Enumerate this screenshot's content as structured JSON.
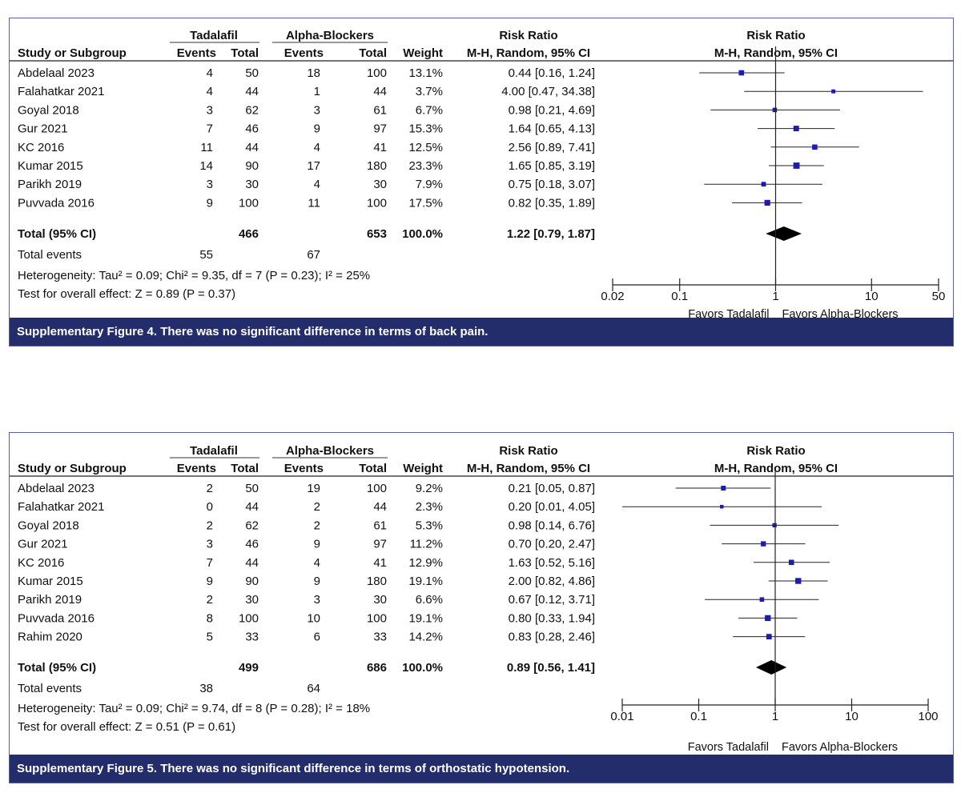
{
  "colors": {
    "accent": "#242d6b",
    "marker": "#1c1cb0",
    "border": "#5a5f9e"
  },
  "labels": {
    "group1": "Tadalafil",
    "group2": "Alpha-Blockers",
    "study_col": "Study or Subgroup",
    "events": "Events",
    "total": "Total",
    "weight": "Weight",
    "rr_title": "Risk Ratio",
    "rr_method": "M-H, Random, 95% CI",
    "total_ci": "Total (95% CI)",
    "total_events": "Total events",
    "favors_left": "Favors Tadalafil",
    "favors_right": "Favors Alpha-Blockers"
  },
  "chart_data": [
    {
      "type": "forest",
      "caption": "Supplementary Figure 4.  There was no significant difference in terms of back pain.",
      "studies": [
        {
          "name": "Abdelaal 2023",
          "e1": "4",
          "n1": "50",
          "e2": "18",
          "n2": "100",
          "weight": "13.1%",
          "ci_text": "0.44 [0.16, 1.24]",
          "rr": 0.44,
          "lo": 0.16,
          "hi": 1.24
        },
        {
          "name": "Falahatkar 2021",
          "e1": "4",
          "n1": "44",
          "e2": "1",
          "n2": "44",
          "weight": "3.7%",
          "ci_text": "4.00 [0.47, 34.38]",
          "rr": 4.0,
          "lo": 0.47,
          "hi": 34.38
        },
        {
          "name": "Goyal 2018",
          "e1": "3",
          "n1": "62",
          "e2": "3",
          "n2": "61",
          "weight": "6.7%",
          "ci_text": "0.98 [0.21, 4.69]",
          "rr": 0.98,
          "lo": 0.21,
          "hi": 4.69
        },
        {
          "name": "Gur 2021",
          "e1": "7",
          "n1": "46",
          "e2": "9",
          "n2": "97",
          "weight": "15.3%",
          "ci_text": "1.64 [0.65, 4.13]",
          "rr": 1.64,
          "lo": 0.65,
          "hi": 4.13
        },
        {
          "name": "KC 2016",
          "e1": "11",
          "n1": "44",
          "e2": "4",
          "n2": "41",
          "weight": "12.5%",
          "ci_text": "2.56 [0.89, 7.41]",
          "rr": 2.56,
          "lo": 0.89,
          "hi": 7.41
        },
        {
          "name": "Kumar 2015",
          "e1": "14",
          "n1": "90",
          "e2": "17",
          "n2": "180",
          "weight": "23.3%",
          "ci_text": "1.65 [0.85, 3.19]",
          "rr": 1.65,
          "lo": 0.85,
          "hi": 3.19
        },
        {
          "name": "Parikh 2019",
          "e1": "3",
          "n1": "30",
          "e2": "4",
          "n2": "30",
          "weight": "7.9%",
          "ci_text": "0.75 [0.18, 3.07]",
          "rr": 0.75,
          "lo": 0.18,
          "hi": 3.07
        },
        {
          "name": "Puvvada 2016",
          "e1": "9",
          "n1": "100",
          "e2": "11",
          "n2": "100",
          "weight": "17.5%",
          "ci_text": "0.82 [0.35, 1.89]",
          "rr": 0.82,
          "lo": 0.35,
          "hi": 1.89
        }
      ],
      "total": {
        "n1": "466",
        "n2": "653",
        "weight": "100.0%",
        "ci_text": "1.22 [0.79, 1.87]",
        "rr": 1.22,
        "lo": 0.79,
        "hi": 1.87
      },
      "total_events": {
        "e1": "55",
        "e2": "67"
      },
      "heterogeneity": "Heterogeneity: Tau² = 0.09; Chi² = 9.35, df = 7 (P = 0.23); I² = 25%",
      "overall_effect": "Test for overall effect: Z = 0.89 (P = 0.37)",
      "xscale": "log",
      "xlim": [
        0.02,
        50
      ],
      "ticks": [
        0.02,
        0.1,
        1,
        10,
        50
      ],
      "tick_labels": [
        "0.02",
        "0.1",
        "1",
        "10",
        "50"
      ]
    },
    {
      "type": "forest",
      "caption": "Supplementary Figure 5.  There was no significant difference in terms of orthostatic hypotension.",
      "studies": [
        {
          "name": "Abdelaal 2023",
          "e1": "2",
          "n1": "50",
          "e2": "19",
          "n2": "100",
          "weight": "9.2%",
          "ci_text": "0.21 [0.05, 0.87]",
          "rr": 0.21,
          "lo": 0.05,
          "hi": 0.87
        },
        {
          "name": "Falahatkar 2021",
          "e1": "0",
          "n1": "44",
          "e2": "2",
          "n2": "44",
          "weight": "2.3%",
          "ci_text": "0.20 [0.01, 4.05]",
          "rr": 0.2,
          "lo": 0.01,
          "hi": 4.05
        },
        {
          "name": "Goyal 2018",
          "e1": "2",
          "n1": "62",
          "e2": "2",
          "n2": "61",
          "weight": "5.3%",
          "ci_text": "0.98 [0.14, 6.76]",
          "rr": 0.98,
          "lo": 0.14,
          "hi": 6.76
        },
        {
          "name": "Gur 2021",
          "e1": "3",
          "n1": "46",
          "e2": "9",
          "n2": "97",
          "weight": "11.2%",
          "ci_text": "0.70 [0.20, 2.47]",
          "rr": 0.7,
          "lo": 0.2,
          "hi": 2.47
        },
        {
          "name": "KC 2016",
          "e1": "7",
          "n1": "44",
          "e2": "4",
          "n2": "41",
          "weight": "12.9%",
          "ci_text": "1.63 [0.52, 5.16]",
          "rr": 1.63,
          "lo": 0.52,
          "hi": 5.16
        },
        {
          "name": "Kumar 2015",
          "e1": "9",
          "n1": "90",
          "e2": "9",
          "n2": "180",
          "weight": "19.1%",
          "ci_text": "2.00 [0.82, 4.86]",
          "rr": 2.0,
          "lo": 0.82,
          "hi": 4.86
        },
        {
          "name": "Parikh 2019",
          "e1": "2",
          "n1": "30",
          "e2": "3",
          "n2": "30",
          "weight": "6.6%",
          "ci_text": "0.67 [0.12, 3.71]",
          "rr": 0.67,
          "lo": 0.12,
          "hi": 3.71
        },
        {
          "name": "Puvvada 2016",
          "e1": "8",
          "n1": "100",
          "e2": "10",
          "n2": "100",
          "weight": "19.1%",
          "ci_text": "0.80 [0.33, 1.94]",
          "rr": 0.8,
          "lo": 0.33,
          "hi": 1.94
        },
        {
          "name": "Rahim 2020",
          "e1": "5",
          "n1": "33",
          "e2": "6",
          "n2": "33",
          "weight": "14.2%",
          "ci_text": "0.83 [0.28, 2.46]",
          "rr": 0.83,
          "lo": 0.28,
          "hi": 2.46
        }
      ],
      "total": {
        "n1": "499",
        "n2": "686",
        "weight": "100.0%",
        "ci_text": "0.89 [0.56, 1.41]",
        "rr": 0.89,
        "lo": 0.56,
        "hi": 1.41
      },
      "total_events": {
        "e1": "38",
        "e2": "64"
      },
      "heterogeneity": "Heterogeneity: Tau² = 0.09; Chi² = 9.74, df = 8 (P = 0.28); I² = 18%",
      "overall_effect": "Test for overall effect: Z = 0.51 (P = 0.61)",
      "xscale": "log",
      "xlim": [
        0.01,
        100
      ],
      "ticks": [
        0.01,
        0.1,
        1,
        10,
        100
      ],
      "tick_labels": [
        "0.01",
        "0.1",
        "1",
        "10",
        "100"
      ]
    }
  ]
}
